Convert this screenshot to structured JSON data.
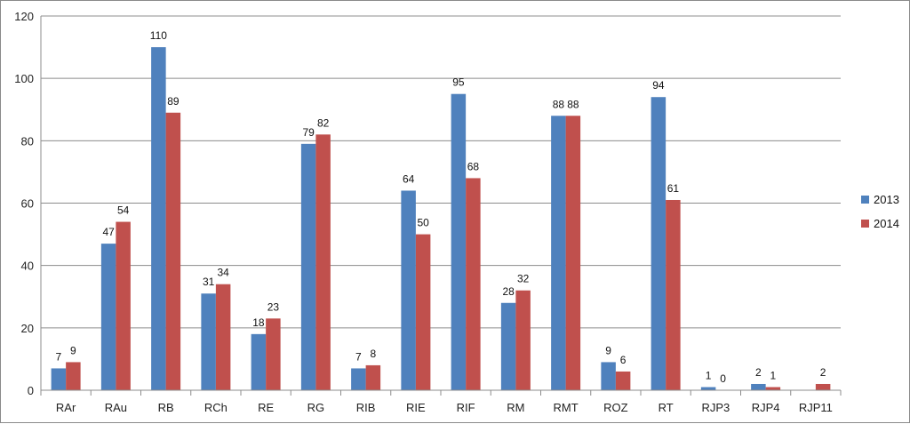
{
  "chart_data": {
    "type": "bar",
    "title": "",
    "xlabel": "",
    "ylabel": "",
    "categories": [
      "RAr",
      "RAu",
      "RB",
      "RCh",
      "RE",
      "RG",
      "RIB",
      "RIE",
      "RIF",
      "RM",
      "RMT",
      "ROZ",
      "RT",
      "RJP3",
      "RJP4",
      "RJP11"
    ],
    "series": [
      {
        "name": "2013",
        "color": "#4f81bd",
        "values": [
          7,
          47,
          110,
          31,
          18,
          79,
          7,
          64,
          95,
          28,
          88,
          9,
          94,
          1,
          2,
          null
        ]
      },
      {
        "name": "2014",
        "color": "#c0504d",
        "values": [
          9,
          54,
          89,
          34,
          23,
          82,
          8,
          50,
          68,
          32,
          88,
          6,
          61,
          0,
          1,
          2
        ]
      }
    ],
    "ylim": [
      0,
      120
    ],
    "ytick_step": 20,
    "yticks": [
      "0",
      "20",
      "40",
      "60",
      "80",
      "100",
      "120"
    ],
    "grid": true,
    "legend": "right",
    "data_labels": true
  }
}
